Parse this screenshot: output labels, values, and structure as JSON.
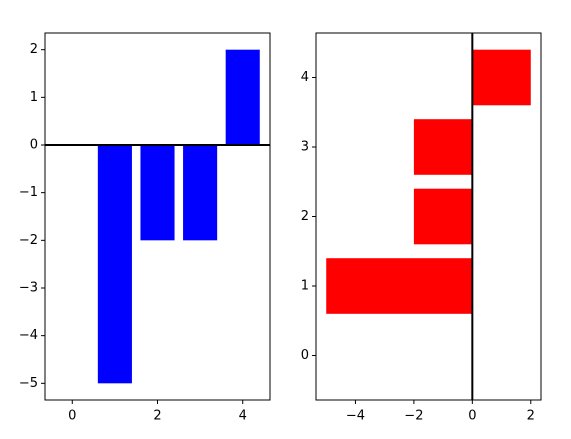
{
  "chart_data": [
    {
      "type": "bar",
      "orientation": "vertical",
      "x": [
        0,
        1,
        2,
        3,
        4
      ],
      "values": [
        0,
        -5,
        -2,
        -2,
        2
      ],
      "color": "#0000ff",
      "xlim": [
        -0.64,
        4.64
      ],
      "ylim": [
        -5.35,
        2.35
      ],
      "xticks": [
        0,
        2,
        4
      ],
      "yticks": [
        {
          "value": -5,
          "label": "−5"
        },
        {
          "value": -4,
          "label": "−4"
        },
        {
          "value": -3,
          "label": "−3"
        },
        {
          "value": -2,
          "label": "−2"
        },
        {
          "value": -1,
          "label": "−1"
        },
        0,
        1,
        2
      ],
      "refline": 0
    },
    {
      "type": "bar",
      "orientation": "horizontal",
      "y": [
        0,
        1,
        2,
        3,
        4
      ],
      "values": [
        0,
        -5,
        -2,
        -2,
        2
      ],
      "color": "#ff0000",
      "xlim": [
        -5.35,
        2.35
      ],
      "ylim": [
        -0.64,
        4.64
      ],
      "xticks": [
        {
          "value": -4,
          "label": "−4"
        },
        {
          "value": -2,
          "label": "−2"
        },
        0,
        2
      ],
      "yticks": [
        0,
        1,
        2,
        3,
        4
      ],
      "refline": 0
    }
  ]
}
